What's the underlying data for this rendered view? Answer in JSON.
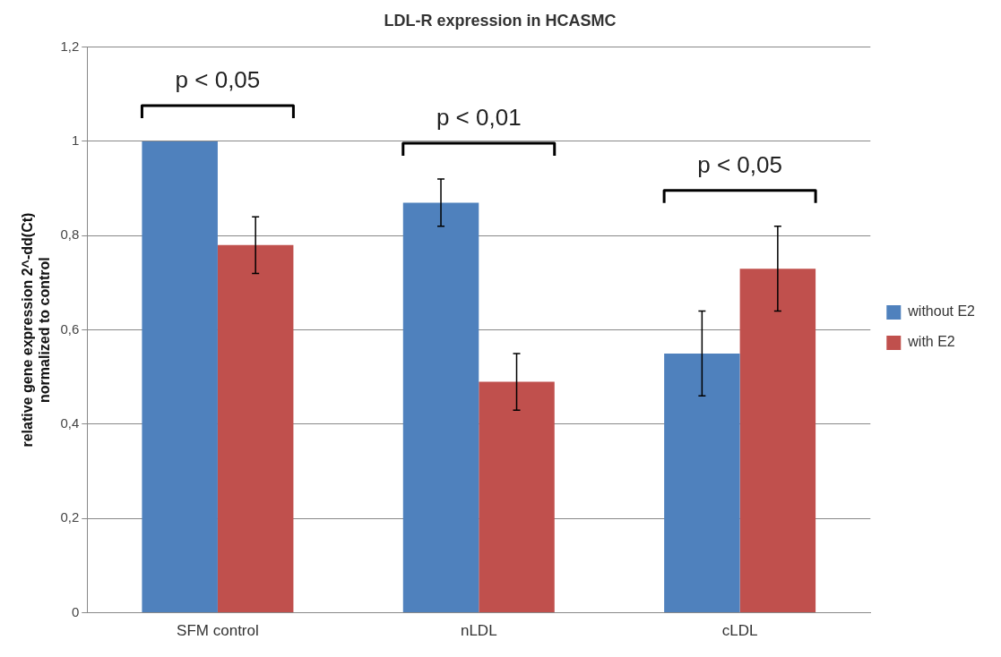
{
  "chart_data": {
    "type": "bar",
    "title": "LDL-R expression in HCASMC",
    "ylabel": "relative gene expression 2^-dd(Ct)\nnormalized to control",
    "categories": [
      "SFM control",
      "nLDL",
      "cLDL"
    ],
    "series": [
      {
        "name": "without E2",
        "color": "#4f81bd",
        "values": [
          1,
          0.87,
          0.55
        ],
        "errors": [
          null,
          0.05,
          0.09
        ]
      },
      {
        "name": "with E2",
        "color": "#c0504d",
        "values": [
          0.78,
          0.49,
          0.73
        ],
        "errors": [
          0.06,
          0.06,
          0.09
        ]
      }
    ],
    "ylim": [
      0,
      1.2
    ],
    "yticks": [
      0,
      {
        "value": 0.2,
        "label": "0,2"
      },
      {
        "value": 0.4,
        "label": "0,4"
      },
      {
        "value": 0.6,
        "label": "0,6"
      },
      {
        "value": 0.8,
        "label": "0,8"
      },
      1,
      {
        "value": 1.2,
        "label": "1,2"
      }
    ],
    "grid": "y",
    "legend": "right",
    "annotations": [
      "p < 0,05",
      "p < 0,01",
      "p < 0,05"
    ]
  }
}
